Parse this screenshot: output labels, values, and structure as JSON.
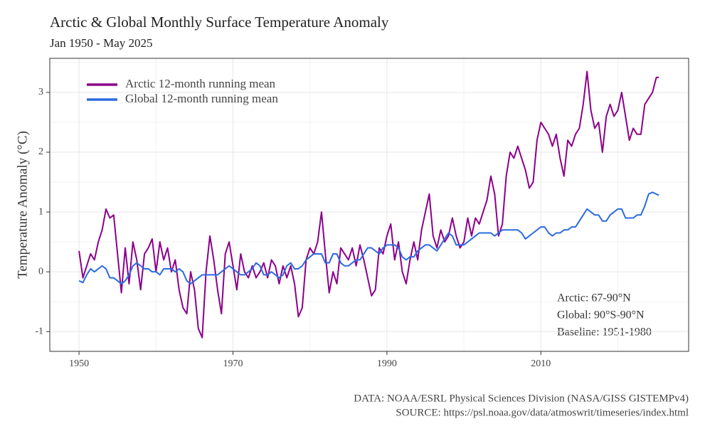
{
  "chart_data": {
    "type": "line",
    "title": "Arctic & Global Monthly Surface Temperature Anomaly",
    "subtitle": "Jan 1950 - May 2025",
    "ylabel": "Temperature Anomaly (°C)",
    "annotations": [
      "Arctic: 67-90°N",
      "Global: 90°S-90°N",
      "Baseline: 1951-1980"
    ],
    "caption": [
      "DATA: NOAA/ESRL Physical Sciences Division (NASA/GISS GISTEMPv4)",
      "SOURCE: https://psl.noaa.gov/data/atmoswrit/timeseries/index.html"
    ],
    "xlim": [
      1946.2,
      2029.2
    ],
    "xticks": [
      1950,
      1970,
      1990,
      2010
    ],
    "xminor": [
      1960,
      1980,
      2000,
      2020
    ],
    "ylim": [
      -1.33,
      3.57
    ],
    "yticks": [
      -1,
      0,
      1,
      2,
      3
    ],
    "yminor": [
      -0.5,
      0.5,
      1.5,
      2.5,
      3.5
    ],
    "grid": true,
    "legend": "top-left",
    "x": [
      1950,
      1950.5,
      1951,
      1951.5,
      1952,
      1952.5,
      1953,
      1953.5,
      1954,
      1954.5,
      1955,
      1955.5,
      1956,
      1956.5,
      1957,
      1957.5,
      1958,
      1958.5,
      1959,
      1959.5,
      1960,
      1960.5,
      1961,
      1961.5,
      1962,
      1962.5,
      1963,
      1963.5,
      1964,
      1964.5,
      1965,
      1965.5,
      1966,
      1966.5,
      1967,
      1967.5,
      1968,
      1968.5,
      1969,
      1969.5,
      1970,
      1970.5,
      1971,
      1971.5,
      1972,
      1972.5,
      1973,
      1973.5,
      1974,
      1974.5,
      1975,
      1975.5,
      1976,
      1976.5,
      1977,
      1977.5,
      1978,
      1978.5,
      1979,
      1979.5,
      1980,
      1980.5,
      1981,
      1981.5,
      1982,
      1982.5,
      1983,
      1983.5,
      1984,
      1984.5,
      1985,
      1985.5,
      1986,
      1986.5,
      1987,
      1987.5,
      1988,
      1988.5,
      1989,
      1989.5,
      1990,
      1990.5,
      1991,
      1991.5,
      1992,
      1992.5,
      1993,
      1993.5,
      1994,
      1994.5,
      1995,
      1995.5,
      1996,
      1996.5,
      1997,
      1997.5,
      1998,
      1998.5,
      1999,
      1999.5,
      2000,
      2000.5,
      2001,
      2001.5,
      2002,
      2002.5,
      2003,
      2003.5,
      2004,
      2004.5,
      2005,
      2005.5,
      2006,
      2006.5,
      2007,
      2007.5,
      2008,
      2008.5,
      2009,
      2009.5,
      2010,
      2010.5,
      2011,
      2011.5,
      2012,
      2012.5,
      2013,
      2013.5,
      2014,
      2014.5,
      2015,
      2015.5,
      2016,
      2016.5,
      2017,
      2017.5,
      2018,
      2018.5,
      2019,
      2019.5,
      2020,
      2020.5,
      2021,
      2021.5,
      2022,
      2022.5,
      2023,
      2023.5,
      2024,
      2024.5,
      2025,
      2025.33
    ],
    "series": [
      {
        "name": "Arctic 12-month running mean",
        "color": "#8b008b",
        "values": [
          0.35,
          -0.1,
          0.1,
          0.3,
          0.2,
          0.5,
          0.7,
          1.05,
          0.9,
          0.95,
          0.3,
          -0.35,
          0.4,
          -0.2,
          0.5,
          0.2,
          -0.3,
          0.3,
          0.4,
          0.55,
          0.0,
          0.5,
          0.2,
          0.4,
          0.0,
          0.2,
          -0.3,
          -0.6,
          -0.7,
          0.0,
          -0.3,
          -0.95,
          -1.1,
          0.0,
          0.6,
          0.2,
          -0.3,
          -0.7,
          0.3,
          0.5,
          0.1,
          -0.3,
          0.3,
          0.0,
          -0.1,
          0.1,
          -0.1,
          0.0,
          0.15,
          -0.1,
          0.2,
          0.1,
          -0.2,
          0.1,
          -0.1,
          0.1,
          -0.2,
          -0.75,
          -0.6,
          0.2,
          0.4,
          0.3,
          0.5,
          1.0,
          0.3,
          -0.35,
          0.0,
          -0.2,
          0.4,
          0.3,
          0.2,
          0.4,
          0.1,
          0.45,
          0.2,
          -0.1,
          -0.4,
          -0.3,
          0.4,
          0.3,
          0.6,
          0.8,
          0.2,
          0.5,
          0.0,
          -0.2,
          0.2,
          0.5,
          0.2,
          0.7,
          1.0,
          1.3,
          0.6,
          0.4,
          0.7,
          0.5,
          0.6,
          0.9,
          0.6,
          0.4,
          0.5,
          0.9,
          0.6,
          0.9,
          0.8,
          1.0,
          1.2,
          1.6,
          1.3,
          0.6,
          0.8,
          1.6,
          2.0,
          1.9,
          2.1,
          1.9,
          1.7,
          1.4,
          1.5,
          2.2,
          2.5,
          2.4,
          2.3,
          2.1,
          2.3,
          1.9,
          1.6,
          2.2,
          2.1,
          2.3,
          2.4,
          2.8,
          3.35,
          2.7,
          2.4,
          2.5,
          2.0,
          2.6,
          2.8,
          2.6,
          2.7,
          3.0,
          2.6,
          2.2,
          2.4,
          2.3,
          2.3,
          2.8,
          2.9,
          3.0,
          3.25,
          3.25
        ]
      },
      {
        "name": "Global 12-month running mean",
        "color": "#2a6be0",
        "values": [
          -0.15,
          -0.18,
          -0.05,
          0.05,
          0.0,
          0.05,
          0.1,
          0.05,
          -0.1,
          -0.1,
          -0.15,
          -0.2,
          -0.15,
          -0.05,
          0.1,
          0.15,
          0.1,
          0.05,
          0.05,
          0.0,
          0.0,
          -0.05,
          0.05,
          0.05,
          0.05,
          0.0,
          0.05,
          0.0,
          -0.15,
          -0.2,
          -0.15,
          -0.1,
          -0.05,
          -0.05,
          -0.05,
          -0.05,
          -0.05,
          0.0,
          0.05,
          0.1,
          0.05,
          0.0,
          -0.05,
          -0.05,
          0.0,
          0.05,
          0.15,
          0.1,
          -0.05,
          -0.05,
          0.0,
          -0.05,
          -0.1,
          -0.05,
          0.1,
          0.15,
          0.05,
          0.05,
          0.1,
          0.2,
          0.25,
          0.3,
          0.3,
          0.3,
          0.15,
          0.15,
          0.3,
          0.3,
          0.15,
          0.1,
          0.1,
          0.15,
          0.2,
          0.2,
          0.3,
          0.4,
          0.4,
          0.35,
          0.3,
          0.4,
          0.45,
          0.45,
          0.45,
          0.4,
          0.25,
          0.2,
          0.25,
          0.25,
          0.35,
          0.4,
          0.45,
          0.45,
          0.4,
          0.35,
          0.45,
          0.55,
          0.65,
          0.6,
          0.45,
          0.45,
          0.45,
          0.5,
          0.55,
          0.6,
          0.65,
          0.65,
          0.65,
          0.65,
          0.6,
          0.65,
          0.7,
          0.7,
          0.7,
          0.7,
          0.7,
          0.65,
          0.55,
          0.6,
          0.65,
          0.7,
          0.75,
          0.75,
          0.65,
          0.6,
          0.65,
          0.65,
          0.7,
          0.7,
          0.75,
          0.75,
          0.85,
          0.95,
          1.05,
          1.0,
          0.95,
          0.95,
          0.85,
          0.85,
          0.95,
          1.0,
          1.05,
          1.05,
          0.9,
          0.9,
          0.9,
          0.95,
          0.95,
          1.1,
          1.3,
          1.33,
          1.3,
          1.28
        ]
      }
    ]
  }
}
